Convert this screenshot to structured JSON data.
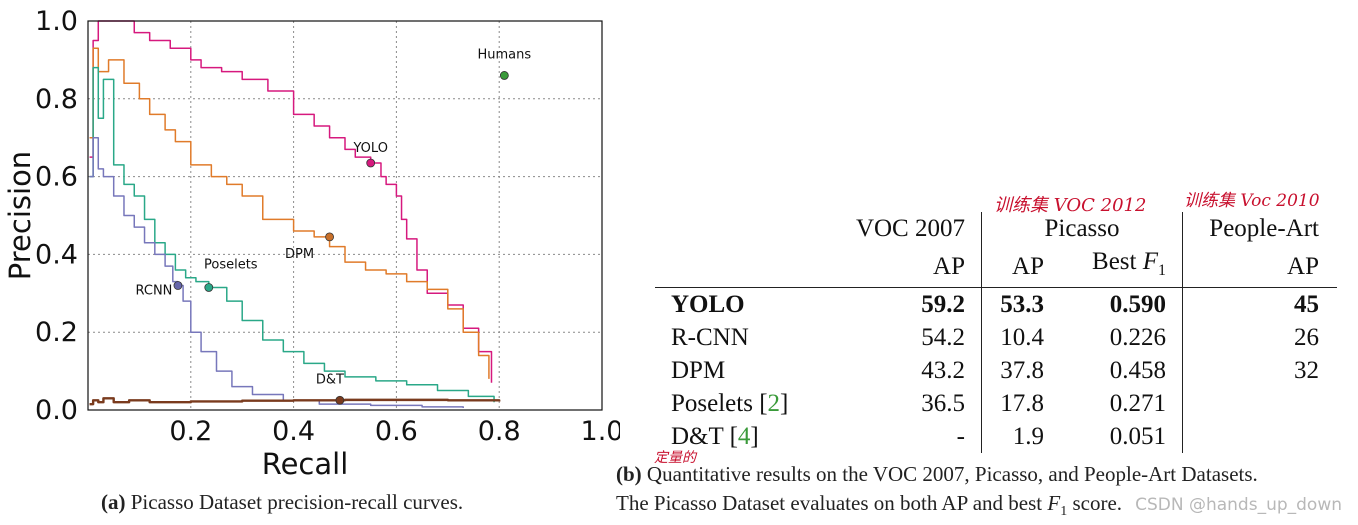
{
  "chart_data": {
    "type": "line",
    "xlabel": "Recall",
    "ylabel": "Precision",
    "xlim": [
      0,
      1.0
    ],
    "ylim": [
      0,
      1.0
    ],
    "xticks": [
      "0.2",
      "0.4",
      "0.6",
      "0.8",
      "1.0"
    ],
    "yticks": [
      "0.0",
      "0.2",
      "0.4",
      "0.6",
      "0.8",
      "1.0"
    ],
    "grid": true,
    "series": [
      {
        "name": "YOLO",
        "color": "#d6197e",
        "x": [
          0.003,
          0.01,
          0.02,
          0.08,
          0.09,
          0.12,
          0.16,
          0.2,
          0.22,
          0.26,
          0.3,
          0.35,
          0.4,
          0.44,
          0.47,
          0.5,
          0.52,
          0.55,
          0.57,
          0.58,
          0.6,
          0.61,
          0.62,
          0.64,
          0.66,
          0.7,
          0.73,
          0.76,
          0.785
        ],
        "y": [
          0.65,
          0.95,
          1.0,
          1.0,
          0.97,
          0.95,
          0.93,
          0.9,
          0.88,
          0.87,
          0.85,
          0.82,
          0.76,
          0.73,
          0.7,
          0.67,
          0.65,
          0.635,
          0.6,
          0.58,
          0.55,
          0.49,
          0.44,
          0.36,
          0.3,
          0.27,
          0.21,
          0.15,
          0.07
        ]
      },
      {
        "name": "DPM",
        "color": "#e07b2a",
        "x": [
          0.003,
          0.01,
          0.02,
          0.04,
          0.07,
          0.1,
          0.12,
          0.15,
          0.17,
          0.2,
          0.24,
          0.27,
          0.3,
          0.34,
          0.4,
          0.44,
          0.47,
          0.5,
          0.54,
          0.58,
          0.62,
          0.66,
          0.7,
          0.73,
          0.76,
          0.78
        ],
        "y": [
          0.7,
          0.93,
          0.87,
          0.9,
          0.84,
          0.8,
          0.76,
          0.72,
          0.69,
          0.63,
          0.6,
          0.58,
          0.55,
          0.49,
          0.46,
          0.445,
          0.42,
          0.38,
          0.36,
          0.35,
          0.33,
          0.31,
          0.26,
          0.2,
          0.14,
          0.08
        ]
      },
      {
        "name": "Poselets",
        "color": "#2aa888",
        "x": [
          0.003,
          0.01,
          0.02,
          0.03,
          0.05,
          0.07,
          0.09,
          0.11,
          0.13,
          0.15,
          0.17,
          0.19,
          0.21,
          0.235,
          0.27,
          0.3,
          0.34,
          0.38,
          0.42,
          0.46,
          0.5,
          0.56,
          0.62,
          0.68,
          0.74,
          0.79
        ],
        "y": [
          0.6,
          0.88,
          0.75,
          0.85,
          0.63,
          0.58,
          0.55,
          0.49,
          0.43,
          0.4,
          0.36,
          0.34,
          0.33,
          0.315,
          0.28,
          0.23,
          0.18,
          0.15,
          0.12,
          0.1,
          0.085,
          0.075,
          0.065,
          0.05,
          0.035,
          0.02
        ]
      },
      {
        "name": "RCNN",
        "color": "#7777bb",
        "x": [
          0.003,
          0.01,
          0.02,
          0.03,
          0.05,
          0.07,
          0.09,
          0.11,
          0.13,
          0.15,
          0.165,
          0.175,
          0.185,
          0.2,
          0.22,
          0.25,
          0.28,
          0.32,
          0.38,
          0.45,
          0.55,
          0.65,
          0.73
        ],
        "y": [
          0.6,
          0.7,
          0.62,
          0.6,
          0.55,
          0.5,
          0.47,
          0.43,
          0.4,
          0.37,
          0.33,
          0.32,
          0.28,
          0.2,
          0.15,
          0.1,
          0.06,
          0.04,
          0.025,
          0.015,
          0.012,
          0.008,
          0.005
        ]
      },
      {
        "name": "D&T",
        "color": "#7a3b1e",
        "x": [
          0.003,
          0.01,
          0.02,
          0.03,
          0.05,
          0.08,
          0.12,
          0.2,
          0.3,
          0.4,
          0.5,
          0.6,
          0.7,
          0.8
        ],
        "y": [
          0.015,
          0.025,
          0.02,
          0.03,
          0.02,
          0.025,
          0.02,
          0.022,
          0.024,
          0.025,
          0.026,
          0.026,
          0.025,
          0.022
        ]
      }
    ],
    "points": [
      {
        "name": "YOLO",
        "x": 0.55,
        "y": 0.635,
        "color": "#d6197e",
        "label_x_offset": 0,
        "label_y_offset": -16
      },
      {
        "name": "DPM",
        "x": 0.47,
        "y": 0.445,
        "color": "#c8702a",
        "label_x_offset": -30,
        "label_y_offset": 16
      },
      {
        "name": "Poselets",
        "x": 0.235,
        "y": 0.315,
        "color": "#2aa888",
        "label_x_offset": 22,
        "label_y_offset": -24
      },
      {
        "name": "RCNN",
        "x": 0.175,
        "y": 0.32,
        "color": "#6666aa",
        "label_x_offset": -24,
        "label_y_offset": 4
      },
      {
        "name": "D&T",
        "x": 0.49,
        "y": 0.025,
        "color": "#7a3b1e",
        "label_x_offset": -10,
        "label_y_offset": -22
      },
      {
        "name": "Humans",
        "x": 0.81,
        "y": 0.86,
        "color": "#3a9a3a",
        "label_x_offset": 0,
        "label_y_offset": -22
      }
    ]
  },
  "caption_a": {
    "label": "(a)",
    "text": "Picasso Dataset precision-recall curves."
  },
  "annotations": {
    "handwritten_1": "训练集 VOC 2012",
    "handwritten_2": "训练集 Voc 2010",
    "handwritten_3": "定量的"
  },
  "table": {
    "header1": [
      "",
      "VOC 2007",
      "Picasso",
      "People-Art"
    ],
    "header2": [
      "",
      "AP",
      "AP",
      "Best F1",
      "AP"
    ],
    "rows": [
      {
        "name": "YOLO",
        "ref": "",
        "voc2007_ap": "59.2",
        "picasso_ap": "53.3",
        "picasso_f1": "0.590",
        "peopleart_ap": "45"
      },
      {
        "name": "R-CNN",
        "ref": "",
        "voc2007_ap": "54.2",
        "picasso_ap": "10.4",
        "picasso_f1": "0.226",
        "peopleart_ap": "26"
      },
      {
        "name": "DPM",
        "ref": "",
        "voc2007_ap": "43.2",
        "picasso_ap": "37.8",
        "picasso_f1": "0.458",
        "peopleart_ap": "32"
      },
      {
        "name": "Poselets",
        "ref": "2",
        "voc2007_ap": "36.5",
        "picasso_ap": "17.8",
        "picasso_f1": "0.271",
        "peopleart_ap": ""
      },
      {
        "name": "D&T",
        "ref": "4",
        "voc2007_ap": "-",
        "picasso_ap": "1.9",
        "picasso_f1": "0.051",
        "peopleart_ap": ""
      }
    ]
  },
  "caption_b": {
    "label": "(b)",
    "line1": "Quantitative results on the VOC 2007, Picasso, and People-Art Datasets.",
    "line2_a": "The Picasso Dataset evaluates on both AP and best ",
    "line2_b": " score."
  },
  "watermark": "CSDN @hands_up_down"
}
